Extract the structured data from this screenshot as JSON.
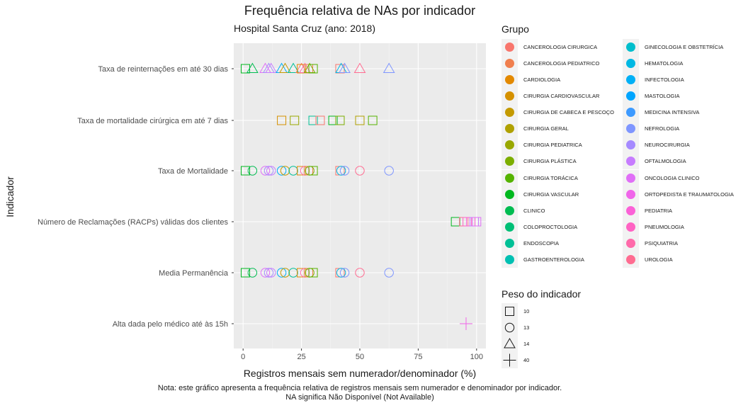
{
  "chart_data": {
    "type": "scatter",
    "title": "Frequência relativa de NAs por indicador",
    "subtitle": "Hospital Santa Cruz (ano: 2018)",
    "xlabel": "Registros mensais sem numerador/denominador (%)",
    "ylabel": "Indicador",
    "xlim": [
      -4,
      104
    ],
    "xticks": [
      "0",
      "25",
      "50",
      "75",
      "100"
    ],
    "caption": [
      "Nota: este gráfico apresenta a frequência relativa de registros mensais sem numerador e denominador por indicador.",
      "NA significa Não Disponível (Not Available)"
    ],
    "categories": [
      "Taxa de reinternações em até 30 dias",
      "Taxa de mortalidade cirúrgica em até 7 dias",
      "Taxa de Mortalidade",
      "Número de Reclamações (RACPs) válidas dos clientes",
      "Media Permanência",
      "Alta dada pelo médico até às 15h"
    ],
    "legend_grupo_title": "Grupo",
    "groups": [
      {
        "name": "CANCEROLOGIA CIRURGICA",
        "color": "#F8766D"
      },
      {
        "name": "CANCEROLOGIA PEDIATRICO",
        "color": "#F07F4E"
      },
      {
        "name": "CARDIOLOGIA",
        "color": "#E38900"
      },
      {
        "name": "CIRURGIA CARDIOVASCULAR",
        "color": "#D59100"
      },
      {
        "name": "CIRURGIA DE CABECA E PESCOÇO",
        "color": "#C49A00"
      },
      {
        "name": "CIRURGIA GERAL",
        "color": "#B0A100"
      },
      {
        "name": "CIRURGIA PEDIATRICA",
        "color": "#99A800"
      },
      {
        "name": "CIRURGIA PLÁSTICA",
        "color": "#7CAE00"
      },
      {
        "name": "CIRURGIA TORÁCICA",
        "color": "#55B300"
      },
      {
        "name": "CIRURGIA VASCULAR",
        "color": "#00B81F"
      },
      {
        "name": "CLINICO",
        "color": "#00BC51"
      },
      {
        "name": "COLOPROCTOLOGIA",
        "color": "#00BF76"
      },
      {
        "name": "ENDOSCOPIA",
        "color": "#00C096"
      },
      {
        "name": "GASTROENTEROLOGIA",
        "color": "#00C0B2"
      },
      {
        "name": "GINECOLOGIA E OBSTETRÍCIA",
        "color": "#00BECC"
      },
      {
        "name": "HEMATOLOGIA",
        "color": "#00B8E3"
      },
      {
        "name": "INFECTOLOGIA",
        "color": "#00B0F6"
      },
      {
        "name": "MASTOLOGIA",
        "color": "#00A5FF"
      },
      {
        "name": "MEDICINA INTENSIVA",
        "color": "#3D9AFF"
      },
      {
        "name": "NEFROLOGIA",
        "color": "#7F96FF"
      },
      {
        "name": "NEUROCIRURGIA",
        "color": "#A58AFF"
      },
      {
        "name": "OFTALMOLOGIA",
        "color": "#C77CFF"
      },
      {
        "name": "ONCOLOGIA CLINICO",
        "color": "#E06FF7"
      },
      {
        "name": "ORTOPEDISTA E TRAUMATOLOGIA",
        "color": "#F066EA"
      },
      {
        "name": "PEDIATRIA",
        "color": "#FB61D7"
      },
      {
        "name": "PNEUMOLOGIA",
        "color": "#FF63C3"
      },
      {
        "name": "PSIQUIATRIA",
        "color": "#FF6AAA"
      },
      {
        "name": "UROLOGIA",
        "color": "#FF6C91"
      }
    ],
    "legend_peso_title": "Peso do indicador",
    "shapes": [
      {
        "label": "10",
        "shape": "square"
      },
      {
        "label": "13",
        "shape": "circle"
      },
      {
        "label": "14",
        "shape": "triangle"
      },
      {
        "label": "40",
        "shape": "plus"
      }
    ],
    "points": [
      {
        "indicator": 0,
        "shape": "square",
        "x": 1,
        "color": "#00B81F"
      },
      {
        "indicator": 0,
        "shape": "triangle",
        "x": 4,
        "color": "#00BC51"
      },
      {
        "indicator": 0,
        "shape": "triangle",
        "x": 9.5,
        "color": "#E06FF7"
      },
      {
        "indicator": 0,
        "shape": "triangle",
        "x": 11,
        "color": "#A58AFF"
      },
      {
        "indicator": 0,
        "shape": "triangle",
        "x": 12,
        "color": "#C77CFF"
      },
      {
        "indicator": 0,
        "shape": "triangle",
        "x": 16.5,
        "color": "#00B0F6"
      },
      {
        "indicator": 0,
        "shape": "triangle",
        "x": 18,
        "color": "#C49A00"
      },
      {
        "indicator": 0,
        "shape": "triangle",
        "x": 21.5,
        "color": "#00C096"
      },
      {
        "indicator": 0,
        "shape": "triangle",
        "x": 25,
        "color": "#F8766D"
      },
      {
        "indicator": 0,
        "shape": "square",
        "x": 25,
        "color": "#E38900"
      },
      {
        "indicator": 0,
        "shape": "triangle",
        "x": 26.5,
        "color": "#FF6AAA"
      },
      {
        "indicator": 0,
        "shape": "square",
        "x": 28,
        "color": "#F07F4E"
      },
      {
        "indicator": 0,
        "shape": "triangle",
        "x": 28.5,
        "color": "#7CAE00"
      },
      {
        "indicator": 0,
        "shape": "square",
        "x": 30,
        "color": "#55B300"
      },
      {
        "indicator": 0,
        "shape": "square",
        "x": 41.5,
        "color": "#F8766D"
      },
      {
        "indicator": 0,
        "shape": "triangle",
        "x": 42,
        "color": "#00B8E3"
      },
      {
        "indicator": 0,
        "shape": "triangle",
        "x": 43.5,
        "color": "#7F96FF"
      },
      {
        "indicator": 0,
        "shape": "triangle",
        "x": 50,
        "color": "#FF6C91"
      },
      {
        "indicator": 0,
        "shape": "triangle",
        "x": 62.5,
        "color": "#7F96FF"
      },
      {
        "indicator": 1,
        "shape": "square",
        "x": 16.5,
        "color": "#D59100"
      },
      {
        "indicator": 1,
        "shape": "square",
        "x": 22,
        "color": "#99A800"
      },
      {
        "indicator": 1,
        "shape": "square",
        "x": 30,
        "color": "#00C096"
      },
      {
        "indicator": 1,
        "shape": "square",
        "x": 33,
        "color": "#F8766D"
      },
      {
        "indicator": 1,
        "shape": "square",
        "x": 38.5,
        "color": "#00B81F"
      },
      {
        "indicator": 1,
        "shape": "square",
        "x": 41.5,
        "color": "#7CAE00"
      },
      {
        "indicator": 1,
        "shape": "square",
        "x": 50,
        "color": "#B0A100"
      },
      {
        "indicator": 1,
        "shape": "square",
        "x": 55.5,
        "color": "#55B300"
      },
      {
        "indicator": 2,
        "shape": "square",
        "x": 1,
        "color": "#00B81F"
      },
      {
        "indicator": 2,
        "shape": "circle",
        "x": 4,
        "color": "#00BC51"
      },
      {
        "indicator": 2,
        "shape": "circle",
        "x": 9.5,
        "color": "#E06FF7"
      },
      {
        "indicator": 2,
        "shape": "circle",
        "x": 11,
        "color": "#A58AFF"
      },
      {
        "indicator": 2,
        "shape": "circle",
        "x": 12,
        "color": "#C77CFF"
      },
      {
        "indicator": 2,
        "shape": "circle",
        "x": 16.5,
        "color": "#00B0F6"
      },
      {
        "indicator": 2,
        "shape": "circle",
        "x": 18,
        "color": "#C49A00"
      },
      {
        "indicator": 2,
        "shape": "circle",
        "x": 21.5,
        "color": "#00C096"
      },
      {
        "indicator": 2,
        "shape": "square",
        "x": 25,
        "color": "#E38900"
      },
      {
        "indicator": 2,
        "shape": "circle",
        "x": 26.5,
        "color": "#FF6AAA"
      },
      {
        "indicator": 2,
        "shape": "square",
        "x": 28,
        "color": "#F07F4E"
      },
      {
        "indicator": 2,
        "shape": "circle",
        "x": 28.5,
        "color": "#7CAE00"
      },
      {
        "indicator": 2,
        "shape": "square",
        "x": 30,
        "color": "#55B300"
      },
      {
        "indicator": 2,
        "shape": "square",
        "x": 41.5,
        "color": "#F8766D"
      },
      {
        "indicator": 2,
        "shape": "circle",
        "x": 42,
        "color": "#00B8E3"
      },
      {
        "indicator": 2,
        "shape": "circle",
        "x": 43.5,
        "color": "#7F96FF"
      },
      {
        "indicator": 2,
        "shape": "circle",
        "x": 50,
        "color": "#FF6C91"
      },
      {
        "indicator": 2,
        "shape": "circle",
        "x": 62.5,
        "color": "#7F96FF"
      },
      {
        "indicator": 3,
        "shape": "square",
        "x": 91,
        "color": "#00B81F"
      },
      {
        "indicator": 3,
        "shape": "square",
        "x": 94.5,
        "color": "#FF6C91"
      },
      {
        "indicator": 3,
        "shape": "square",
        "x": 96,
        "color": "#FF63C3"
      },
      {
        "indicator": 3,
        "shape": "square",
        "x": 97.5,
        "color": "#FB61D7"
      },
      {
        "indicator": 3,
        "shape": "square",
        "x": 99,
        "color": "#C77CFF"
      },
      {
        "indicator": 3,
        "shape": "square",
        "x": 100,
        "color": "#E06FF7"
      },
      {
        "indicator": 4,
        "shape": "square",
        "x": 1,
        "color": "#00B81F"
      },
      {
        "indicator": 4,
        "shape": "circle",
        "x": 4,
        "color": "#00BC51"
      },
      {
        "indicator": 4,
        "shape": "circle",
        "x": 9.5,
        "color": "#E06FF7"
      },
      {
        "indicator": 4,
        "shape": "circle",
        "x": 11,
        "color": "#A58AFF"
      },
      {
        "indicator": 4,
        "shape": "circle",
        "x": 12,
        "color": "#C77CFF"
      },
      {
        "indicator": 4,
        "shape": "circle",
        "x": 16.5,
        "color": "#00B0F6"
      },
      {
        "indicator": 4,
        "shape": "circle",
        "x": 18,
        "color": "#C49A00"
      },
      {
        "indicator": 4,
        "shape": "circle",
        "x": 21.5,
        "color": "#00C096"
      },
      {
        "indicator": 4,
        "shape": "square",
        "x": 25,
        "color": "#E38900"
      },
      {
        "indicator": 4,
        "shape": "circle",
        "x": 26.5,
        "color": "#FF6AAA"
      },
      {
        "indicator": 4,
        "shape": "square",
        "x": 28,
        "color": "#F07F4E"
      },
      {
        "indicator": 4,
        "shape": "circle",
        "x": 28.5,
        "color": "#7CAE00"
      },
      {
        "indicator": 4,
        "shape": "square",
        "x": 30,
        "color": "#55B300"
      },
      {
        "indicator": 4,
        "shape": "square",
        "x": 41.5,
        "color": "#F8766D"
      },
      {
        "indicator": 4,
        "shape": "circle",
        "x": 42,
        "color": "#00B8E3"
      },
      {
        "indicator": 4,
        "shape": "circle",
        "x": 43.5,
        "color": "#7F96FF"
      },
      {
        "indicator": 4,
        "shape": "circle",
        "x": 50,
        "color": "#FF6C91"
      },
      {
        "indicator": 4,
        "shape": "circle",
        "x": 62.5,
        "color": "#7F96FF"
      },
      {
        "indicator": 5,
        "shape": "plus",
        "x": 95.5,
        "color": "#F066EA"
      }
    ]
  }
}
